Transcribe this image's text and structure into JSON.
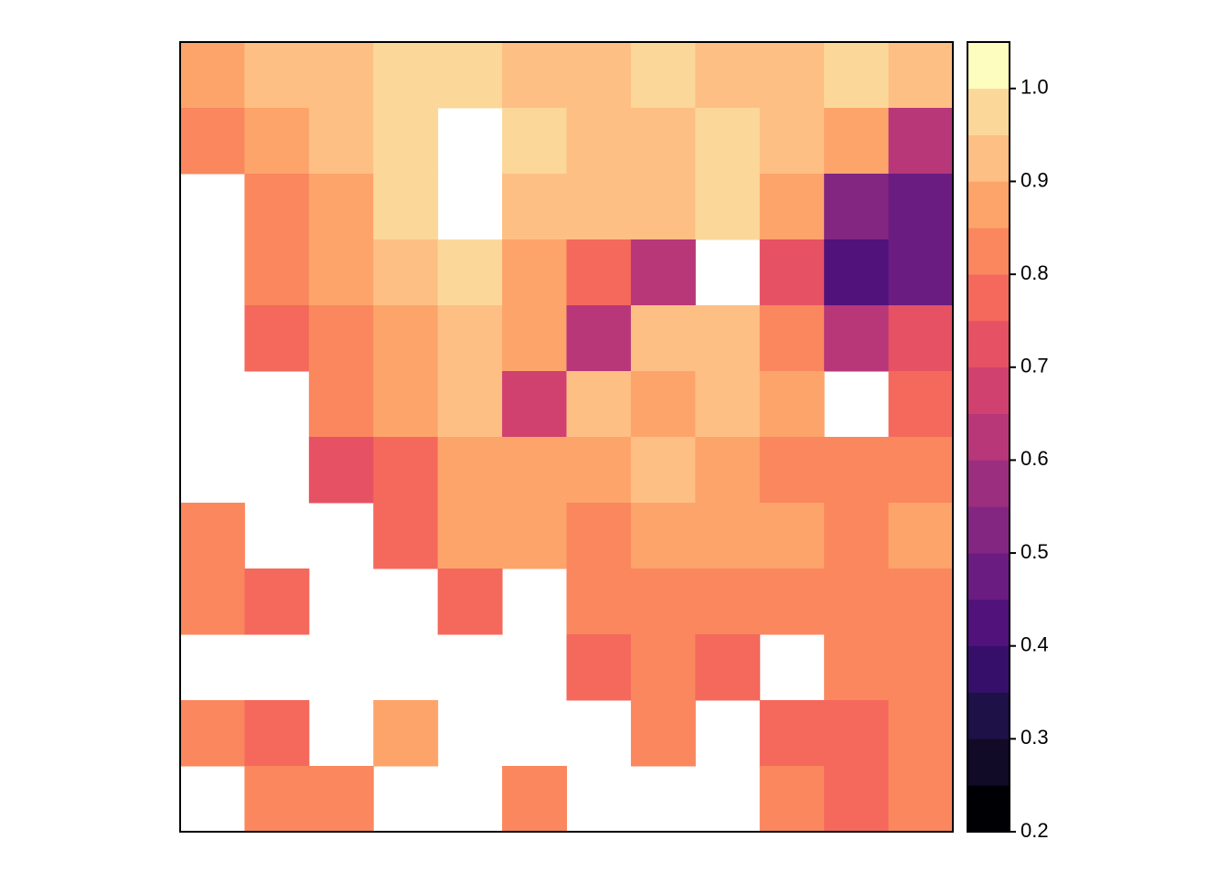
{
  "chart_data": {
    "type": "raster",
    "grid": [
      [
        0.85,
        0.9,
        0.9,
        0.95,
        0.95,
        0.9,
        0.9,
        0.95,
        0.9,
        0.9,
        0.95,
        0.9
      ],
      [
        0.8,
        0.85,
        0.9,
        0.95,
        null,
        0.95,
        0.9,
        0.9,
        0.95,
        0.9,
        0.85,
        0.6
      ],
      [
        null,
        0.8,
        0.85,
        0.95,
        null,
        0.9,
        0.9,
        0.9,
        0.95,
        0.85,
        0.5,
        0.45
      ],
      [
        null,
        0.8,
        0.85,
        0.9,
        0.95,
        0.85,
        0.75,
        0.6,
        null,
        0.7,
        0.4,
        0.45
      ],
      [
        null,
        0.75,
        0.8,
        0.85,
        0.9,
        0.85,
        0.6,
        0.9,
        0.9,
        0.8,
        0.6,
        0.7
      ],
      [
        null,
        null,
        0.8,
        0.85,
        0.9,
        0.65,
        0.9,
        0.85,
        0.9,
        0.85,
        null,
        0.75
      ],
      [
        null,
        null,
        0.7,
        0.75,
        0.85,
        0.85,
        0.85,
        0.9,
        0.85,
        0.8,
        0.8,
        0.8
      ],
      [
        0.8,
        null,
        null,
        0.75,
        0.85,
        0.85,
        0.8,
        0.85,
        0.85,
        0.85,
        0.8,
        0.85
      ],
      [
        0.8,
        0.75,
        null,
        null,
        0.75,
        null,
        0.8,
        0.8,
        0.8,
        0.8,
        0.8,
        0.8
      ],
      [
        null,
        null,
        null,
        null,
        null,
        null,
        0.75,
        0.8,
        0.75,
        null,
        0.8,
        0.8
      ],
      [
        0.8,
        0.75,
        null,
        0.85,
        null,
        null,
        null,
        0.8,
        null,
        0.75,
        0.75,
        0.8
      ],
      [
        null,
        0.8,
        0.8,
        null,
        null,
        0.8,
        null,
        null,
        null,
        0.8,
        0.75,
        0.8
      ]
    ],
    "breaks": [
      0.2,
      0.25,
      0.3,
      0.35,
      0.4,
      0.45,
      0.5,
      0.55,
      0.6,
      0.65,
      0.7,
      0.75,
      0.8,
      0.85,
      0.9,
      0.95,
      1.0,
      1.05
    ],
    "colors": [
      "#000004",
      "#110b27",
      "#1d1147",
      "#360f6b",
      "#51127c",
      "#6a1c81",
      "#832681",
      "#9c2e7f",
      "#b73779",
      "#d0416f",
      "#e65163",
      "#f4695c",
      "#fa875e",
      "#fda46b",
      "#febf84",
      "#fbd89a",
      "#fcfdbf"
    ],
    "colorbar_ticks": [
      0.2,
      0.3,
      0.4,
      0.5,
      0.6,
      0.7,
      0.8,
      0.9,
      1.0
    ]
  }
}
